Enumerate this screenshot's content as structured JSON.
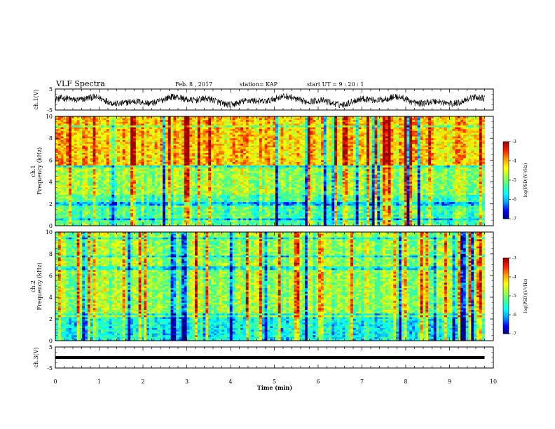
{
  "header": {
    "title": "VLF Spectra",
    "date": "Feb. 8 , 2017",
    "station": "station= KAP",
    "start_time": "start  UT =   9 : 20 : 1"
  },
  "colorbar": {
    "label": "log(PSD)(V²/Hz)",
    "ticks": [
      "-3",
      "-4",
      "-5",
      "-6",
      "-7"
    ],
    "colors": [
      "#000080",
      "#0000ff",
      "#00a0ff",
      "#00ffff",
      "#40ff90",
      "#a0ff40",
      "#ffff00",
      "#ffa000",
      "#ff2000",
      "#a00000"
    ]
  },
  "chart_data": [
    {
      "type": "line",
      "panel": "ch1-waveform",
      "ylabel": "ch.1(V)",
      "yticks": [
        "5",
        "-5"
      ],
      "ylim": [
        -5,
        5
      ],
      "x_range_min": [
        0,
        10
      ],
      "note_data": "noisy waveform fluctuating roughly between -4 and 3 V over 0-9.8 min",
      "y_envelope_min": -4,
      "y_envelope_max": 3
    },
    {
      "type": "heatmap",
      "panel": "ch1-spectrogram",
      "ylabel": "ch.1\nFrequency (kHz)",
      "yticks": [
        "0",
        "2",
        "4",
        "6",
        "8",
        "10"
      ],
      "ylim": [
        0,
        10
      ],
      "xlim": [
        0,
        10
      ],
      "data_extent_min": [
        0,
        9.8
      ],
      "z_range": [
        -7,
        -3
      ]
    },
    {
      "type": "heatmap",
      "panel": "ch2-spectrogram",
      "ylabel": "ch.2\nFrequency (kHz)",
      "yticks": [
        "0",
        "2",
        "4",
        "6",
        "8",
        "10"
      ],
      "ylim": [
        0,
        10
      ],
      "xlim": [
        0,
        10
      ],
      "data_extent_min": [
        0,
        9.8
      ],
      "z_range": [
        -7,
        -3
      ]
    },
    {
      "type": "line",
      "panel": "ch3-waveform",
      "ylabel": "ch.3(V)",
      "yticks": [
        "5",
        "-5"
      ],
      "ylim": [
        -5,
        5
      ],
      "constant_value": 0,
      "data_extent_min": [
        0,
        9.8
      ]
    }
  ],
  "xaxis": {
    "label": "Time  (min)",
    "ticks": [
      "0",
      "1",
      "2",
      "3",
      "4",
      "5",
      "6",
      "7",
      "8",
      "9",
      "10"
    ]
  }
}
